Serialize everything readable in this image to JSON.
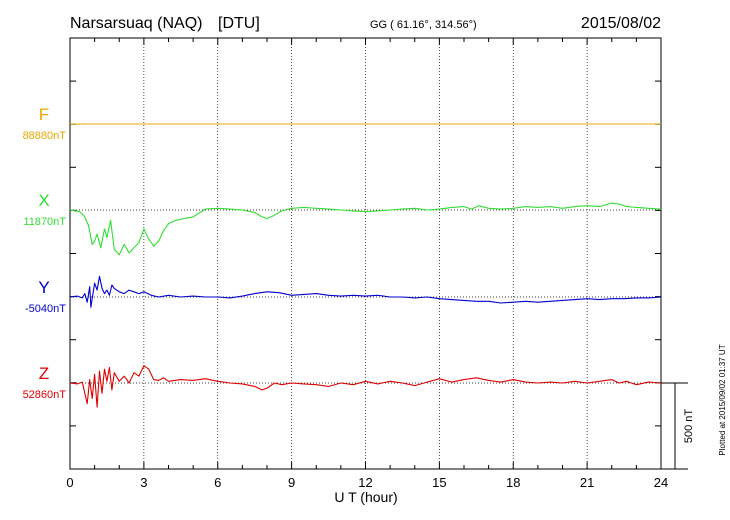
{
  "header": {
    "station": "Narsarsuaq (NAQ)",
    "institute": "[DTU]",
    "coords": "GG ( 61.16°, 314.56°)",
    "date": "2015/08/02"
  },
  "plotted_note": "Plotted at 2015/09/02 01:37 UT",
  "chart_data": {
    "type": "line",
    "xlabel": "U T (hour)",
    "xlim": [
      0,
      24
    ],
    "x_ticks": [
      "0",
      "3",
      "6",
      "9",
      "12",
      "15",
      "18",
      "21",
      "24"
    ],
    "scale_bar_label": "500 nT",
    "scale_bar_nT": 500,
    "series": [
      {
        "name": "F",
        "baseline_label": "88880nT",
        "color": "#e8a800",
        "x": [
          0,
          24
        ],
        "y": [
          0,
          0
        ]
      },
      {
        "name": "X",
        "baseline_label": "11870nT",
        "color": "#33dd33",
        "x": [
          0,
          0.4,
          0.6,
          0.75,
          0.9,
          1.0,
          1.1,
          1.25,
          1.4,
          1.5,
          1.65,
          1.8,
          2.0,
          2.2,
          2.4,
          2.6,
          2.8,
          3.0,
          3.2,
          3.4,
          3.6,
          3.8,
          4.0,
          4.3,
          4.6,
          5.0,
          5.5,
          6.0,
          6.5,
          7.0,
          7.5,
          7.8,
          8.0,
          8.3,
          8.6,
          9.0,
          9.5,
          10.0,
          10.5,
          11.0,
          11.5,
          12.0,
          12.5,
          13.0,
          13.5,
          14.0,
          14.5,
          15.0,
          15.5,
          16.0,
          16.3,
          16.6,
          17.0,
          17.5,
          18.0,
          18.5,
          19.0,
          19.5,
          20.0,
          20.5,
          21.0,
          21.5,
          22.0,
          22.3,
          22.6,
          23.0,
          23.5,
          24.0
        ],
        "y": [
          0,
          -10,
          -40,
          -90,
          -200,
          -180,
          -140,
          -220,
          -110,
          -160,
          -60,
          -230,
          -260,
          -200,
          -250,
          -220,
          -190,
          -110,
          -170,
          -210,
          -180,
          -120,
          -80,
          -60,
          -50,
          -40,
          5,
          10,
          5,
          0,
          -15,
          -40,
          -50,
          -30,
          -5,
          10,
          15,
          10,
          5,
          0,
          -5,
          -10,
          -5,
          0,
          5,
          10,
          0,
          5,
          15,
          20,
          5,
          25,
          10,
          5,
          10,
          20,
          15,
          20,
          10,
          20,
          25,
          20,
          40,
          35,
          20,
          15,
          10,
          5
        ]
      },
      {
        "name": "Y",
        "baseline_label": "-5040nT",
        "color": "#0000cc",
        "x": [
          0,
          0.3,
          0.5,
          0.6,
          0.7,
          0.8,
          0.85,
          0.9,
          1.0,
          1.1,
          1.2,
          1.3,
          1.4,
          1.5,
          1.6,
          1.7,
          1.8,
          2.0,
          2.2,
          2.4,
          2.6,
          2.8,
          3.0,
          3.3,
          3.6,
          4.0,
          4.5,
          5.0,
          5.5,
          6.0,
          6.5,
          7.0,
          7.5,
          8.0,
          8.5,
          9.0,
          9.5,
          10.0,
          10.5,
          11.0,
          11.5,
          12.0,
          12.5,
          13.0,
          13.5,
          14.0,
          14.5,
          15.0,
          15.5,
          16.0,
          16.5,
          17.0,
          17.5,
          18.0,
          18.5,
          19.0,
          19.5,
          20.0,
          20.5,
          21.0,
          21.5,
          22.0,
          22.5,
          23.0,
          23.5,
          24.0
        ],
        "y": [
          0,
          5,
          -5,
          20,
          -30,
          60,
          -60,
          -10,
          80,
          40,
          120,
          50,
          20,
          40,
          10,
          70,
          50,
          30,
          20,
          40,
          30,
          20,
          30,
          10,
          0,
          10,
          0,
          5,
          0,
          0,
          -5,
          5,
          20,
          30,
          25,
          10,
          15,
          20,
          10,
          5,
          10,
          5,
          10,
          0,
          0,
          -5,
          0,
          -10,
          -15,
          -20,
          -25,
          -25,
          -35,
          -30,
          -25,
          -30,
          -25,
          -20,
          -15,
          -10,
          -15,
          -10,
          -10,
          -5,
          -5,
          0
        ]
      },
      {
        "name": "Z",
        "baseline_label": "52860nT",
        "color": "#dd0000",
        "x": [
          0,
          0.3,
          0.5,
          0.6,
          0.7,
          0.8,
          0.9,
          1.0,
          1.1,
          1.2,
          1.3,
          1.4,
          1.5,
          1.6,
          1.7,
          1.8,
          2.0,
          2.2,
          2.4,
          2.6,
          2.8,
          3.0,
          3.2,
          3.4,
          3.6,
          3.8,
          4.0,
          4.5,
          5.0,
          5.5,
          6.0,
          6.5,
          7.0,
          7.5,
          7.8,
          8.0,
          8.3,
          8.6,
          9.0,
          9.5,
          10.0,
          10.5,
          11.0,
          11.5,
          12.0,
          12.5,
          13.0,
          13.5,
          14.0,
          14.5,
          15.0,
          15.5,
          16.0,
          16.5,
          17.0,
          17.5,
          18.0,
          18.5,
          19.0,
          19.5,
          20.0,
          20.5,
          21.0,
          21.5,
          22.0,
          22.3,
          22.6,
          23.0,
          23.5,
          24.0
        ],
        "y": [
          0,
          -5,
          5,
          -60,
          -120,
          20,
          -90,
          50,
          -140,
          70,
          -60,
          80,
          10,
          90,
          -40,
          60,
          10,
          40,
          0,
          60,
          40,
          100,
          80,
          20,
          15,
          30,
          10,
          20,
          15,
          25,
          10,
          0,
          -5,
          -20,
          -40,
          -30,
          0,
          -10,
          0,
          -5,
          -10,
          -20,
          0,
          -10,
          10,
          -5,
          10,
          0,
          -15,
          5,
          25,
          5,
          20,
          30,
          15,
          5,
          20,
          5,
          0,
          5,
          0,
          10,
          0,
          10,
          20,
          0,
          10,
          -10,
          5,
          0
        ]
      }
    ]
  }
}
